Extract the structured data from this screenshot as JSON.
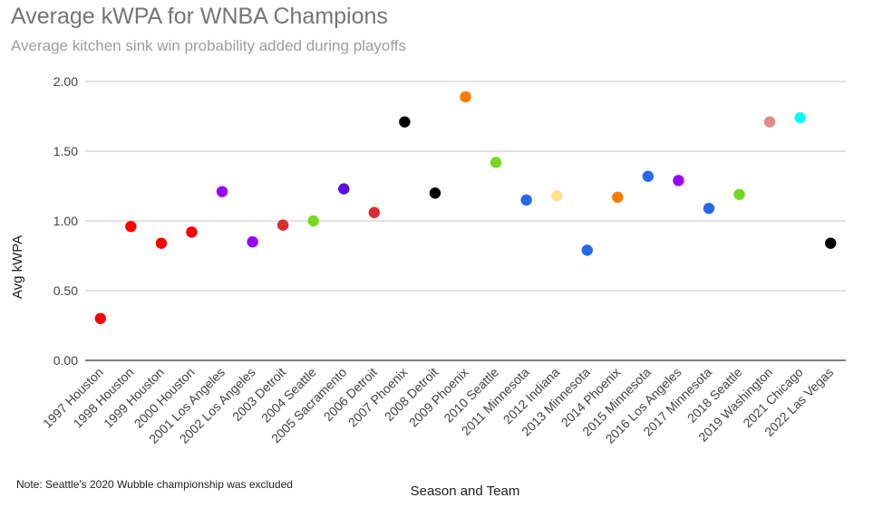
{
  "chart_data": {
    "type": "scatter",
    "title": "Average kWPA for WNBA Champions",
    "subtitle": "Average kitchen sink win probability added during playoffs",
    "xlabel": "Season and Team",
    "ylabel": "Avg kWPA",
    "ylim": [
      0,
      2
    ],
    "yticks": [
      "0.00",
      "0.50",
      "1.00",
      "1.50",
      "2.00"
    ],
    "grid": true,
    "categories": [
      "1997 Houston",
      "1998 Houston",
      "1999 Houston",
      "2000 Houston",
      "2001 Los Angeles",
      "2002 Los Angeles",
      "2003 Detroit",
      "2004 Seattle",
      "2005 Sacramento",
      "2006 Detroit",
      "2007 Phoenix",
      "2008 Detroit",
      "2009 Phoenix",
      "2010 Seattle",
      "2011 Minnesota",
      "2012 Indiana",
      "2013 Minnesota",
      "2014 Phoenix",
      "2015 Minnesota",
      "2016 Los Angeles",
      "2017 Minnesota",
      "2018 Seattle",
      "2019 Washington",
      "2021 Chicago",
      "2022 Las Vegas"
    ],
    "values": [
      0.3,
      0.96,
      0.84,
      0.92,
      1.21,
      0.85,
      0.97,
      1.0,
      1.23,
      1.06,
      1.71,
      1.2,
      1.89,
      1.42,
      1.15,
      1.18,
      0.79,
      1.17,
      1.32,
      1.29,
      1.09,
      1.19,
      1.71,
      1.74,
      0.84
    ],
    "colors": [
      "#ff0000",
      "#ff0000",
      "#ff0000",
      "#ff0000",
      "#9900ff",
      "#9900ff",
      "#dc2b2b",
      "#77d822",
      "#5b0fe0",
      "#dc2b2b",
      "#000000",
      "#000000",
      "#f57c00",
      "#77d822",
      "#2469e8",
      "#ffe08f",
      "#2469e8",
      "#f57c00",
      "#2469e8",
      "#9900ff",
      "#2469e8",
      "#77d822",
      "#e08a8a",
      "#00ffff",
      "#000000"
    ]
  },
  "note": "Note:  Seattle's 2020 Wubble championship was excluded"
}
